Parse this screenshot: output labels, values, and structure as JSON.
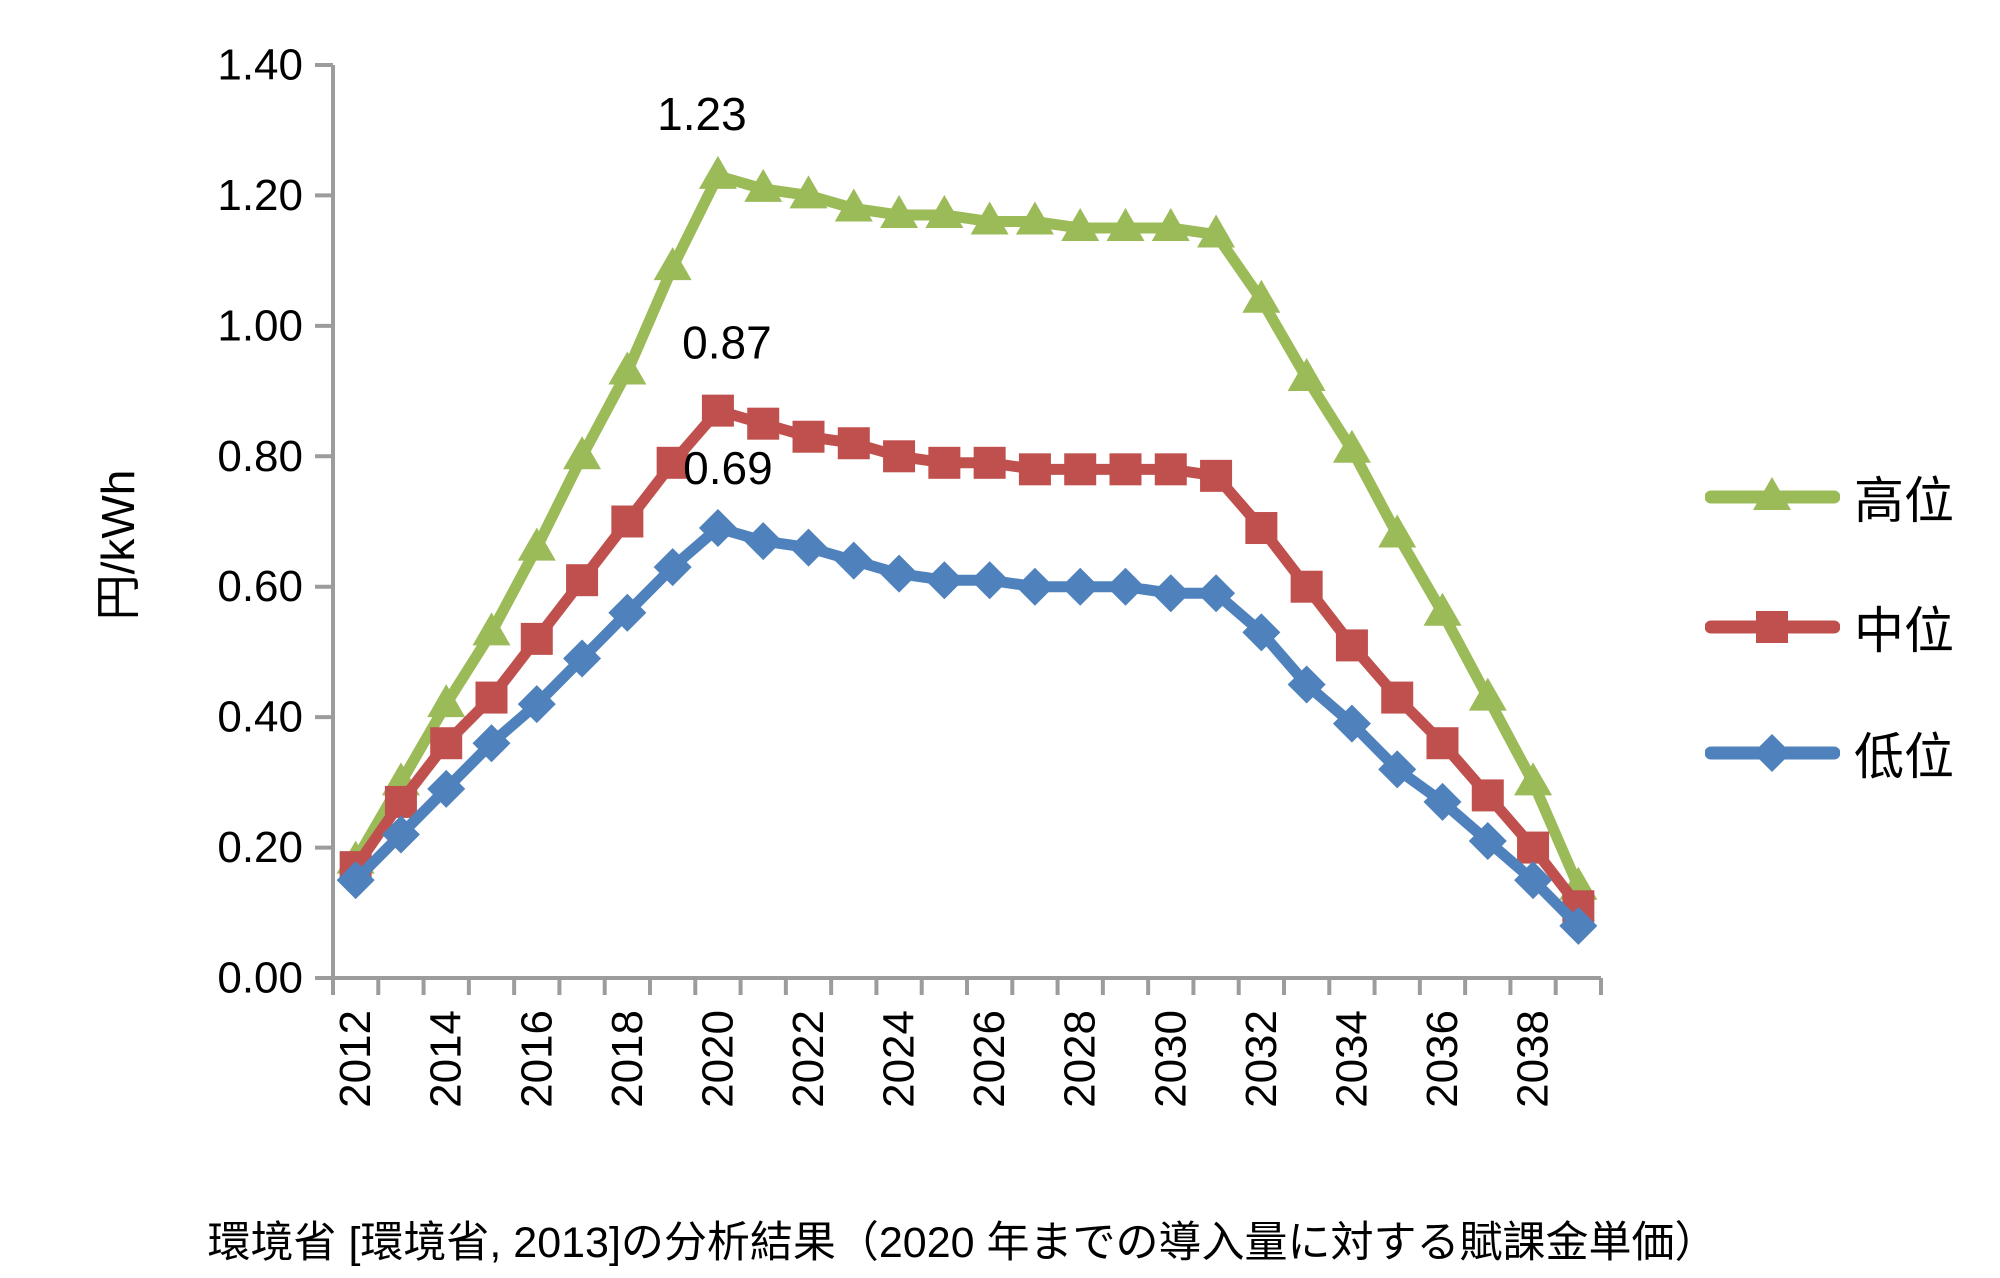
{
  "chart_data": {
    "type": "line",
    "title": "",
    "ylabel": "円/kWh",
    "caption": "環境省 [環境省, 2013]の分析結果（2020 年までの導入量に対する賦課金単価）",
    "x": [
      2012,
      2013,
      2014,
      2015,
      2016,
      2017,
      2018,
      2019,
      2020,
      2021,
      2022,
      2023,
      2024,
      2025,
      2026,
      2027,
      2028,
      2029,
      2030,
      2031,
      2032,
      2033,
      2034,
      2035,
      2036,
      2037,
      2038,
      2039
    ],
    "x_tick_labels": [
      "2012",
      "2014",
      "2016",
      "2018",
      "2020",
      "2022",
      "2024",
      "2026",
      "2028",
      "2030",
      "2032",
      "2034",
      "2036",
      "2038"
    ],
    "y_ticks": [
      "0.00",
      "0.20",
      "0.40",
      "0.60",
      "0.80",
      "1.00",
      "1.20",
      "1.40"
    ],
    "ylim": [
      0,
      1.4
    ],
    "grid": false,
    "legend_position": "right",
    "axis_color": "#9c9c9c",
    "series": [
      {
        "name": "高位",
        "color": "#9BBB59",
        "marker": "triangle",
        "values": [
          0.18,
          0.3,
          0.42,
          0.53,
          0.66,
          0.8,
          0.93,
          1.09,
          1.23,
          1.21,
          1.2,
          1.18,
          1.17,
          1.17,
          1.16,
          1.16,
          1.15,
          1.15,
          1.15,
          1.14,
          1.04,
          0.92,
          0.81,
          0.68,
          0.56,
          0.43,
          0.3,
          0.14
        ]
      },
      {
        "name": "中位",
        "color": "#C0504D",
        "marker": "square",
        "values": [
          0.17,
          0.27,
          0.36,
          0.43,
          0.52,
          0.61,
          0.7,
          0.79,
          0.87,
          0.85,
          0.83,
          0.82,
          0.8,
          0.79,
          0.79,
          0.78,
          0.78,
          0.78,
          0.78,
          0.77,
          0.69,
          0.6,
          0.51,
          0.43,
          0.36,
          0.28,
          0.2,
          0.11
        ]
      },
      {
        "name": "低位",
        "color": "#4F81BD",
        "marker": "diamond",
        "values": [
          0.15,
          0.22,
          0.29,
          0.36,
          0.42,
          0.49,
          0.56,
          0.63,
          0.69,
          0.67,
          0.66,
          0.64,
          0.62,
          0.61,
          0.61,
          0.6,
          0.6,
          0.6,
          0.59,
          0.59,
          0.53,
          0.45,
          0.39,
          0.32,
          0.27,
          0.21,
          0.15,
          0.08
        ]
      }
    ],
    "annotations": [
      {
        "text": "1.23",
        "series": "高位",
        "year": 2020
      },
      {
        "text": "0.87",
        "series": "中位",
        "year": 2020
      },
      {
        "text": "0.69",
        "series": "低位",
        "year": 2020
      }
    ]
  }
}
